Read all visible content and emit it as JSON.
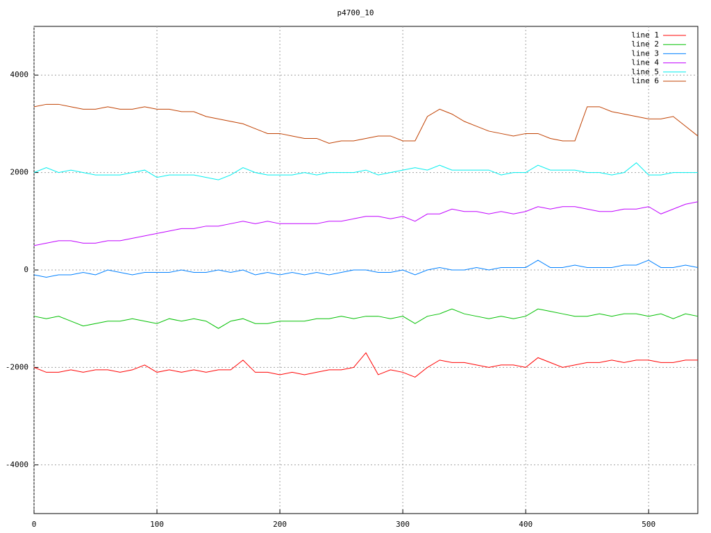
{
  "chart_data": {
    "type": "line",
    "title": "p4700_10",
    "x": [
      0,
      10,
      20,
      30,
      40,
      50,
      60,
      70,
      80,
      90,
      100,
      110,
      120,
      130,
      140,
      150,
      160,
      170,
      180,
      190,
      200,
      210,
      220,
      230,
      240,
      250,
      260,
      270,
      280,
      290,
      300,
      310,
      320,
      330,
      340,
      350,
      360,
      370,
      380,
      390,
      400,
      410,
      420,
      430,
      440,
      450,
      460,
      470,
      480,
      490,
      500,
      510,
      520,
      530,
      540
    ],
    "xlim": [
      0,
      540
    ],
    "xticks": [
      0,
      100,
      200,
      300,
      400,
      500
    ],
    "ylim": [
      -5000,
      5000
    ],
    "yticks": [
      -4000,
      -2000,
      0,
      2000,
      4000
    ],
    "grid": true,
    "legend": "top-right",
    "series": [
      {
        "name": "line 1",
        "color": "#ff0000",
        "values": [
          -2000,
          -2100,
          -2100,
          -2050,
          -2100,
          -2050,
          -2050,
          -2100,
          -2050,
          -1950,
          -2100,
          -2050,
          -2100,
          -2050,
          -2100,
          -2050,
          -2050,
          -1850,
          -2100,
          -2100,
          -2150,
          -2100,
          -2150,
          -2100,
          -2050,
          -2050,
          -2000,
          -1700,
          -2150,
          -2050,
          -2100,
          -2200,
          -2000,
          -1850,
          -1900,
          -1900,
          -1950,
          -2000,
          -1950,
          -1950,
          -2000,
          -1800,
          -1900,
          -2000,
          -1950,
          -1900,
          -1900,
          -1850,
          -1900,
          -1850,
          -1850,
          -1900,
          -1900,
          -1850,
          -1850
        ]
      },
      {
        "name": "line 2",
        "color": "#00c000",
        "values": [
          -950,
          -1000,
          -950,
          -1050,
          -1150,
          -1100,
          -1050,
          -1050,
          -1000,
          -1050,
          -1100,
          -1000,
          -1050,
          -1000,
          -1050,
          -1200,
          -1050,
          -1000,
          -1100,
          -1100,
          -1050,
          -1050,
          -1050,
          -1000,
          -1000,
          -950,
          -1000,
          -950,
          -950,
          -1000,
          -950,
          -1100,
          -950,
          -900,
          -800,
          -900,
          -950,
          -1000,
          -950,
          -1000,
          -950,
          -800,
          -850,
          -900,
          -950,
          -950,
          -900,
          -950,
          -900,
          -900,
          -950,
          -900,
          -1000,
          -900,
          -950
        ]
      },
      {
        "name": "line 3",
        "color": "#0080ff",
        "values": [
          -100,
          -150,
          -100,
          -100,
          -50,
          -100,
          0,
          -50,
          -100,
          -50,
          -50,
          -50,
          0,
          -50,
          -50,
          0,
          -50,
          0,
          -100,
          -50,
          -100,
          -50,
          -100,
          -50,
          -100,
          -50,
          0,
          0,
          -50,
          -50,
          0,
          -100,
          0,
          50,
          0,
          0,
          50,
          0,
          50,
          50,
          50,
          200,
          50,
          50,
          100,
          50,
          50,
          50,
          100,
          100,
          200,
          50,
          50,
          100,
          50
        ]
      },
      {
        "name": "line 4",
        "color": "#c000ff",
        "values": [
          500,
          550,
          600,
          600,
          550,
          550,
          600,
          600,
          650,
          700,
          750,
          800,
          850,
          850,
          900,
          900,
          950,
          1000,
          950,
          1000,
          950,
          950,
          950,
          950,
          1000,
          1000,
          1050,
          1100,
          1100,
          1050,
          1100,
          1000,
          1150,
          1150,
          1250,
          1200,
          1200,
          1150,
          1200,
          1150,
          1200,
          1300,
          1250,
          1300,
          1300,
          1250,
          1200,
          1200,
          1250,
          1250,
          1300,
          1150,
          1250,
          1350,
          1400
        ]
      },
      {
        "name": "line 5",
        "color": "#00eeee",
        "values": [
          2000,
          2100,
          2000,
          2050,
          2000,
          1950,
          1950,
          1950,
          2000,
          2050,
          1900,
          1950,
          1950,
          1950,
          1900,
          1850,
          1950,
          2100,
          2000,
          1950,
          1950,
          1950,
          2000,
          1950,
          2000,
          2000,
          2000,
          2050,
          1950,
          2000,
          2050,
          2100,
          2050,
          2150,
          2050,
          2050,
          2050,
          2050,
          1950,
          2000,
          2000,
          2150,
          2050,
          2050,
          2050,
          2000,
          2000,
          1950,
          2000,
          2200,
          1950,
          1950,
          2000,
          2000,
          2000
        ]
      },
      {
        "name": "line 6",
        "color": "#c04000",
        "values": [
          3350,
          3400,
          3400,
          3350,
          3300,
          3300,
          3350,
          3300,
          3300,
          3350,
          3300,
          3300,
          3250,
          3250,
          3150,
          3100,
          3050,
          3000,
          2900,
          2800,
          2800,
          2750,
          2700,
          2700,
          2600,
          2650,
          2650,
          2700,
          2750,
          2750,
          2650,
          2650,
          3150,
          3300,
          3200,
          3050,
          2950,
          2850,
          2800,
          2750,
          2800,
          2800,
          2700,
          2650,
          2650,
          3350,
          3350,
          3250,
          3200,
          3150,
          3100,
          3100,
          3150,
          2950,
          2750
        ]
      }
    ]
  }
}
